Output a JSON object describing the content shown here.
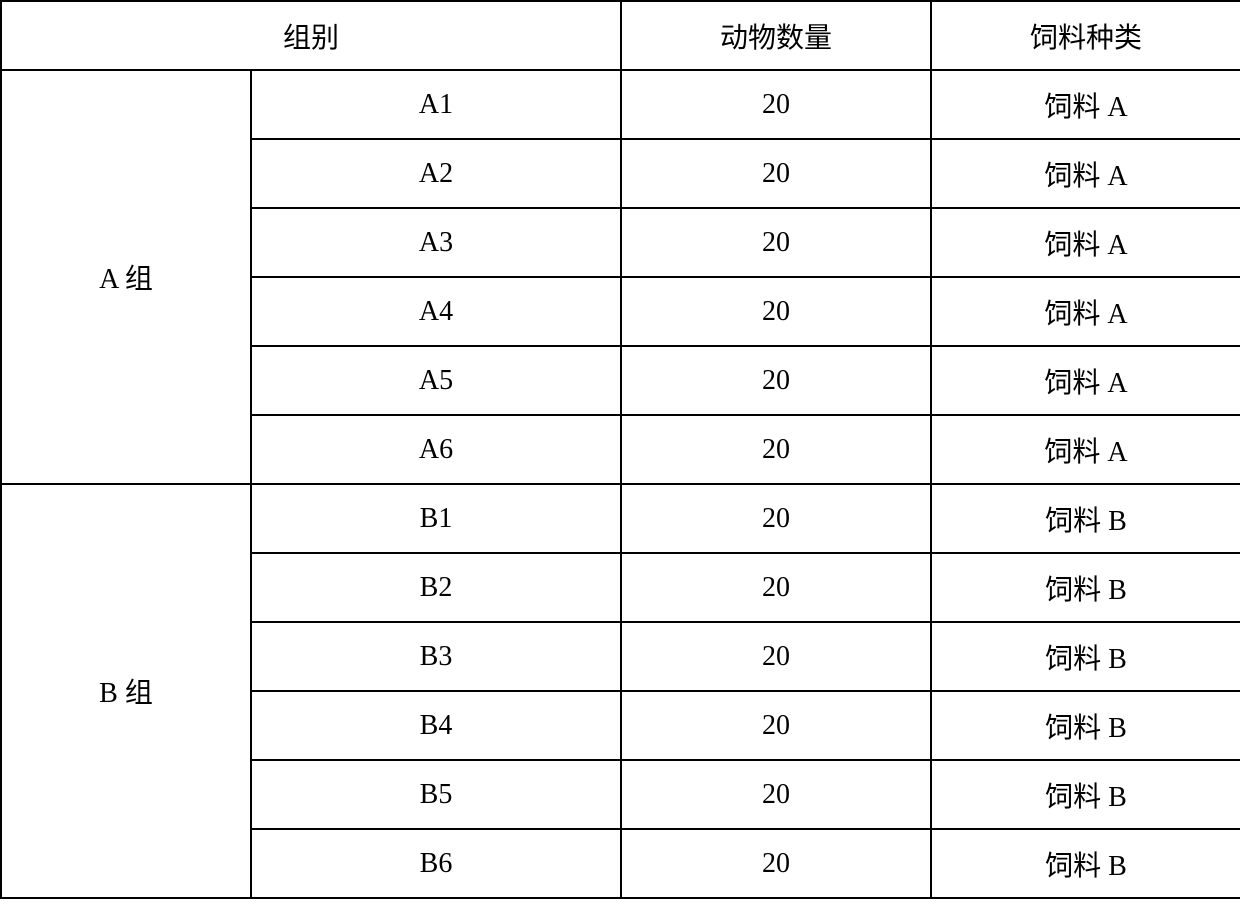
{
  "table": {
    "headers": {
      "group": "组别",
      "animal_count": "动物数量",
      "feed_type": "饲料种类"
    },
    "columns": {
      "group_main_width": 250,
      "subgroup_width": 370,
      "count_width": 310,
      "feed_width": 310
    },
    "groups": [
      {
        "name": "A 组",
        "rows": [
          {
            "subgroup": "A1",
            "count": "20",
            "feed": "饲料 A"
          },
          {
            "subgroup": "A2",
            "count": "20",
            "feed": "饲料 A"
          },
          {
            "subgroup": "A3",
            "count": "20",
            "feed": "饲料 A"
          },
          {
            "subgroup": "A4",
            "count": "20",
            "feed": "饲料 A"
          },
          {
            "subgroup": "A5",
            "count": "20",
            "feed": "饲料 A"
          },
          {
            "subgroup": "A6",
            "count": "20",
            "feed": "饲料 A"
          }
        ]
      },
      {
        "name": "B 组",
        "rows": [
          {
            "subgroup": "B1",
            "count": "20",
            "feed": "饲料 B"
          },
          {
            "subgroup": "B2",
            "count": "20",
            "feed": "饲料 B"
          },
          {
            "subgroup": "B3",
            "count": "20",
            "feed": "饲料 B"
          },
          {
            "subgroup": "B4",
            "count": "20",
            "feed": "饲料 B"
          },
          {
            "subgroup": "B5",
            "count": "20",
            "feed": "饲料 B"
          },
          {
            "subgroup": "B6",
            "count": "20",
            "feed": "饲料 B"
          }
        ]
      }
    ],
    "styling": {
      "border_color": "#000000",
      "border_width": 2,
      "background_color": "#ffffff",
      "text_color": "#000000",
      "font_size": 28,
      "header_row_height": 69,
      "data_row_height": 69,
      "font_family": "SimSun"
    }
  }
}
